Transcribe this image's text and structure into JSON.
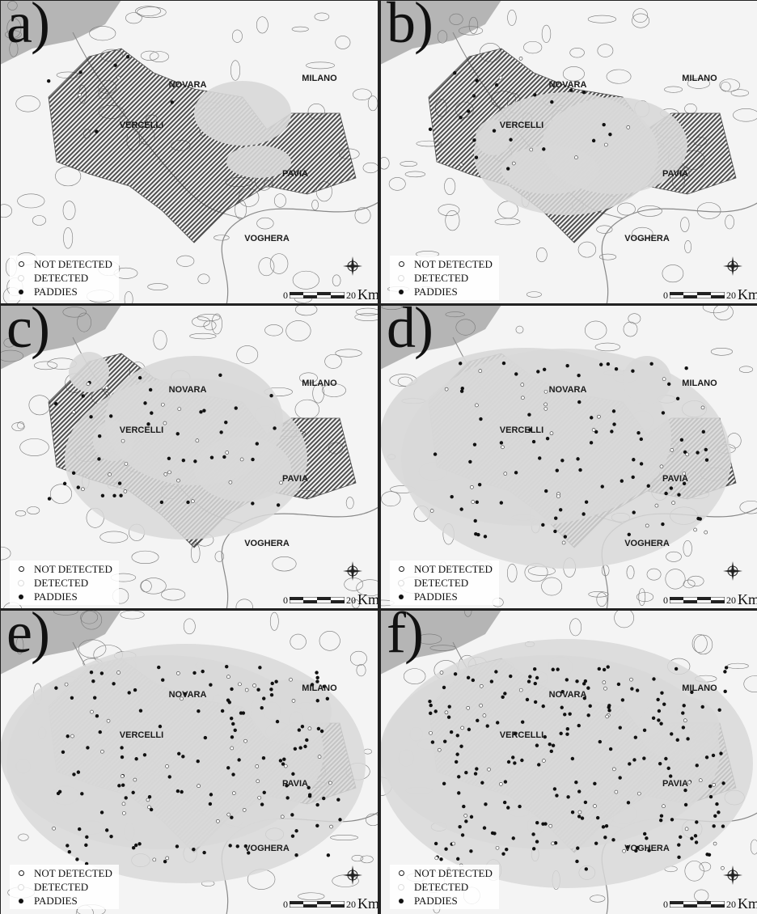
{
  "panels": [
    {
      "label": "a)",
      "clusters": [
        [
          300,
          140,
          60,
          40
        ],
        [
          320,
          200,
          40,
          20
        ]
      ],
      "paddyExtent": 0.0,
      "dotsDetected": 6,
      "dotsNot": 2
    },
    {
      "label": "b)",
      "clusters": [
        [
          610,
          170,
          22,
          22
        ],
        [
          760,
          180,
          90,
          60
        ],
        [
          680,
          210,
          60,
          30
        ]
      ],
      "paddyExtent": 0.3,
      "dotsDetected": 20,
      "dotsNot": 8
    },
    {
      "label": "c)",
      "clusters": [
        [
          110,
          460,
          25,
          25
        ],
        [
          140,
          545,
          25,
          25
        ],
        [
          240,
          520,
          110,
          80
        ],
        [
          300,
          580,
          60,
          40
        ]
      ],
      "paddyExtent": 0.5,
      "dotsDetected": 40,
      "dotsNot": 20
    },
    {
      "label": "d)",
      "clusters": [
        [
          650,
          540,
          180,
          110
        ],
        [
          800,
          470,
          30,
          30
        ]
      ],
      "paddyExtent": 0.8,
      "dotsDetected": 80,
      "dotsNot": 30
    },
    {
      "label": "e)",
      "clusters": [
        [
          200,
          930,
          200,
          120
        ],
        [
          360,
          880,
          50,
          40
        ]
      ],
      "paddyExtent": 0.9,
      "dotsDetected": 130,
      "dotsNot": 40
    },
    {
      "label": "f)",
      "clusters": [
        [
          680,
          930,
          210,
          120
        ],
        [
          840,
          900,
          50,
          40
        ]
      ],
      "paddyExtent": 0.95,
      "dotsDetected": 200,
      "dotsNot": 40
    }
  ],
  "cities": [
    "NOVARA",
    "MILANO",
    "VERCELLI",
    "PAVIA",
    "VOGHERA"
  ],
  "legend": {
    "not_detected": "NOT DETECTED",
    "detected": "DETECTED",
    "paddies": "PADDIES"
  },
  "scale": {
    "zero": "0",
    "twenty": "20",
    "unit": "Km"
  },
  "colors": {
    "background": "#f4f4f4",
    "paddy": "#555555",
    "buffer": "#d8d8d8",
    "detected_dot": "#111111",
    "not_detected_dot": "#ffffff",
    "mountain": "#9a9a9a"
  }
}
